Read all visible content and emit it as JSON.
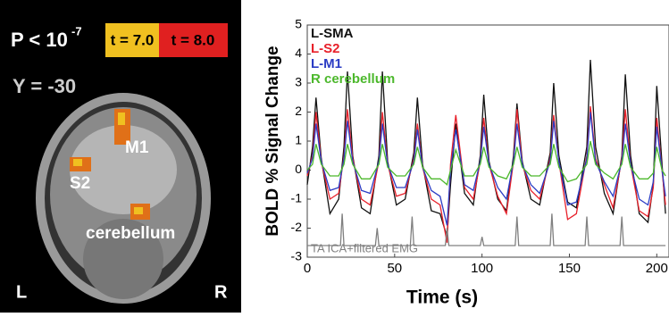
{
  "brain_panel": {
    "p_text": "P < 10",
    "p_exponent": "-7",
    "scale_low": "t = 7.0",
    "scale_high": "t = 8.0",
    "slice": "Y = -30",
    "regions": [
      "M1",
      "S2",
      "cerebellum"
    ],
    "left": "L",
    "right": "R"
  },
  "chart_data": {
    "type": "line",
    "x_label": "Time (s)",
    "y_label": "BOLD % Signal Change",
    "xlim": [
      0,
      207
    ],
    "xticks": [
      0,
      50,
      100,
      150,
      200
    ],
    "ylim": [
      -3,
      5
    ],
    "yticks": [
      -3,
      -2,
      -1,
      0,
      1,
      2,
      3,
      4,
      5
    ],
    "x": [
      0,
      3,
      5,
      8,
      13,
      18,
      21,
      23,
      26,
      31,
      36,
      41,
      43,
      46,
      51,
      56,
      61,
      63,
      66,
      71,
      76,
      80,
      82,
      85,
      90,
      95,
      99,
      101,
      104,
      109,
      114,
      118,
      120,
      123,
      128,
      133,
      139,
      141,
      144,
      149,
      154,
      160,
      162,
      165,
      170,
      175,
      180,
      182,
      185,
      190,
      195,
      198,
      200,
      203,
      205
    ],
    "series": [
      {
        "name": "L-SMA",
        "color": "#111111",
        "values": [
          -0.5,
          0.8,
          2.5,
          0.4,
          -1.5,
          -1.0,
          0.8,
          3.4,
          0.5,
          -1.3,
          -1.5,
          0.5,
          3.4,
          0.3,
          -1.2,
          -1.0,
          0.6,
          2.5,
          0.2,
          -1.4,
          -1.5,
          -2.3,
          -0.5,
          1.6,
          -0.8,
          -1.2,
          0.5,
          2.6,
          0.3,
          -1.0,
          -1.4,
          0.5,
          2.3,
          0.3,
          -1.0,
          -1.2,
          0.6,
          3.0,
          0.5,
          -1.1,
          -1.3,
          0.8,
          3.8,
          0.8,
          -0.8,
          -1.5,
          0.5,
          3.3,
          0.5,
          -1.5,
          -1.8,
          -0.5,
          2.9,
          0.2,
          -1.5
        ]
      },
      {
        "name": "L-S2",
        "color": "#e8202a",
        "values": [
          -0.2,
          0.5,
          2.0,
          0.3,
          -1.0,
          -0.8,
          0.5,
          2.1,
          0.4,
          -1.0,
          -1.2,
          0.3,
          2.0,
          0.2,
          -0.9,
          -0.8,
          0.4,
          1.6,
          0.1,
          -1.0,
          -1.2,
          -2.5,
          0.2,
          1.9,
          -0.6,
          -1.0,
          0.3,
          1.8,
          0.2,
          -0.9,
          -1.5,
          0.3,
          2.1,
          0.2,
          -0.7,
          -1.0,
          0.4,
          1.9,
          0.3,
          -1.7,
          -1.5,
          0.5,
          2.2,
          0.4,
          -0.5,
          -1.3,
          0.4,
          2.1,
          0.2,
          -1.4,
          -1.6,
          -0.6,
          1.8,
          0.0,
          -1.2
        ]
      },
      {
        "name": "L-M1",
        "color": "#2b3cc4",
        "values": [
          -0.1,
          0.4,
          1.6,
          0.3,
          -0.7,
          -0.6,
          0.4,
          1.7,
          0.3,
          -0.7,
          -0.8,
          0.3,
          1.6,
          0.2,
          -0.6,
          -0.6,
          0.3,
          1.4,
          0.1,
          -0.7,
          -0.9,
          -1.9,
          0.0,
          1.4,
          -0.5,
          -0.7,
          0.3,
          1.5,
          0.2,
          -0.6,
          -1.0,
          0.3,
          1.6,
          0.2,
          -0.5,
          -0.8,
          0.3,
          1.7,
          0.3,
          -1.2,
          -1.1,
          0.4,
          2.0,
          0.3,
          -0.4,
          -0.9,
          0.3,
          1.6,
          0.2,
          -1.0,
          -1.2,
          -0.4,
          1.5,
          0.0,
          -0.9
        ]
      },
      {
        "name": "R cerebellum",
        "color": "#4cb82c",
        "values": [
          0.0,
          0.2,
          0.9,
          0.2,
          -0.2,
          -0.2,
          0.2,
          0.9,
          0.2,
          -0.3,
          -0.3,
          0.2,
          0.9,
          0.1,
          -0.2,
          -0.2,
          0.2,
          0.8,
          0.1,
          -0.3,
          -0.3,
          -0.5,
          0.0,
          0.7,
          -0.2,
          -0.2,
          0.2,
          0.8,
          0.1,
          -0.2,
          -0.3,
          0.2,
          0.8,
          0.1,
          -0.2,
          -0.2,
          0.2,
          0.9,
          0.1,
          -0.4,
          -0.3,
          0.2,
          1.0,
          0.2,
          -0.1,
          -0.3,
          0.2,
          0.9,
          0.1,
          -0.3,
          -0.3,
          -0.1,
          0.8,
          0.0,
          -0.2
        ]
      },
      {
        "name": "TA ICA+filtered EMG",
        "color": "#808080",
        "x": [
          0,
          19,
          20,
          21,
          39,
          40,
          41,
          59,
          60,
          61,
          79,
          80,
          81,
          99,
          100,
          101,
          119,
          120,
          121,
          139,
          140,
          141,
          159,
          160,
          161,
          179,
          180,
          181,
          205
        ],
        "values": [
          -2.6,
          -2.6,
          -1.5,
          -2.6,
          -2.6,
          -2.0,
          -2.6,
          -2.6,
          -1.6,
          -2.6,
          -2.6,
          -2.0,
          -2.6,
          -2.6,
          -2.3,
          -2.6,
          -2.6,
          -1.6,
          -2.6,
          -2.6,
          -1.5,
          -2.6,
          -2.6,
          -1.6,
          -2.6,
          -2.6,
          -1.6,
          -2.6,
          -2.6
        ]
      }
    ]
  }
}
